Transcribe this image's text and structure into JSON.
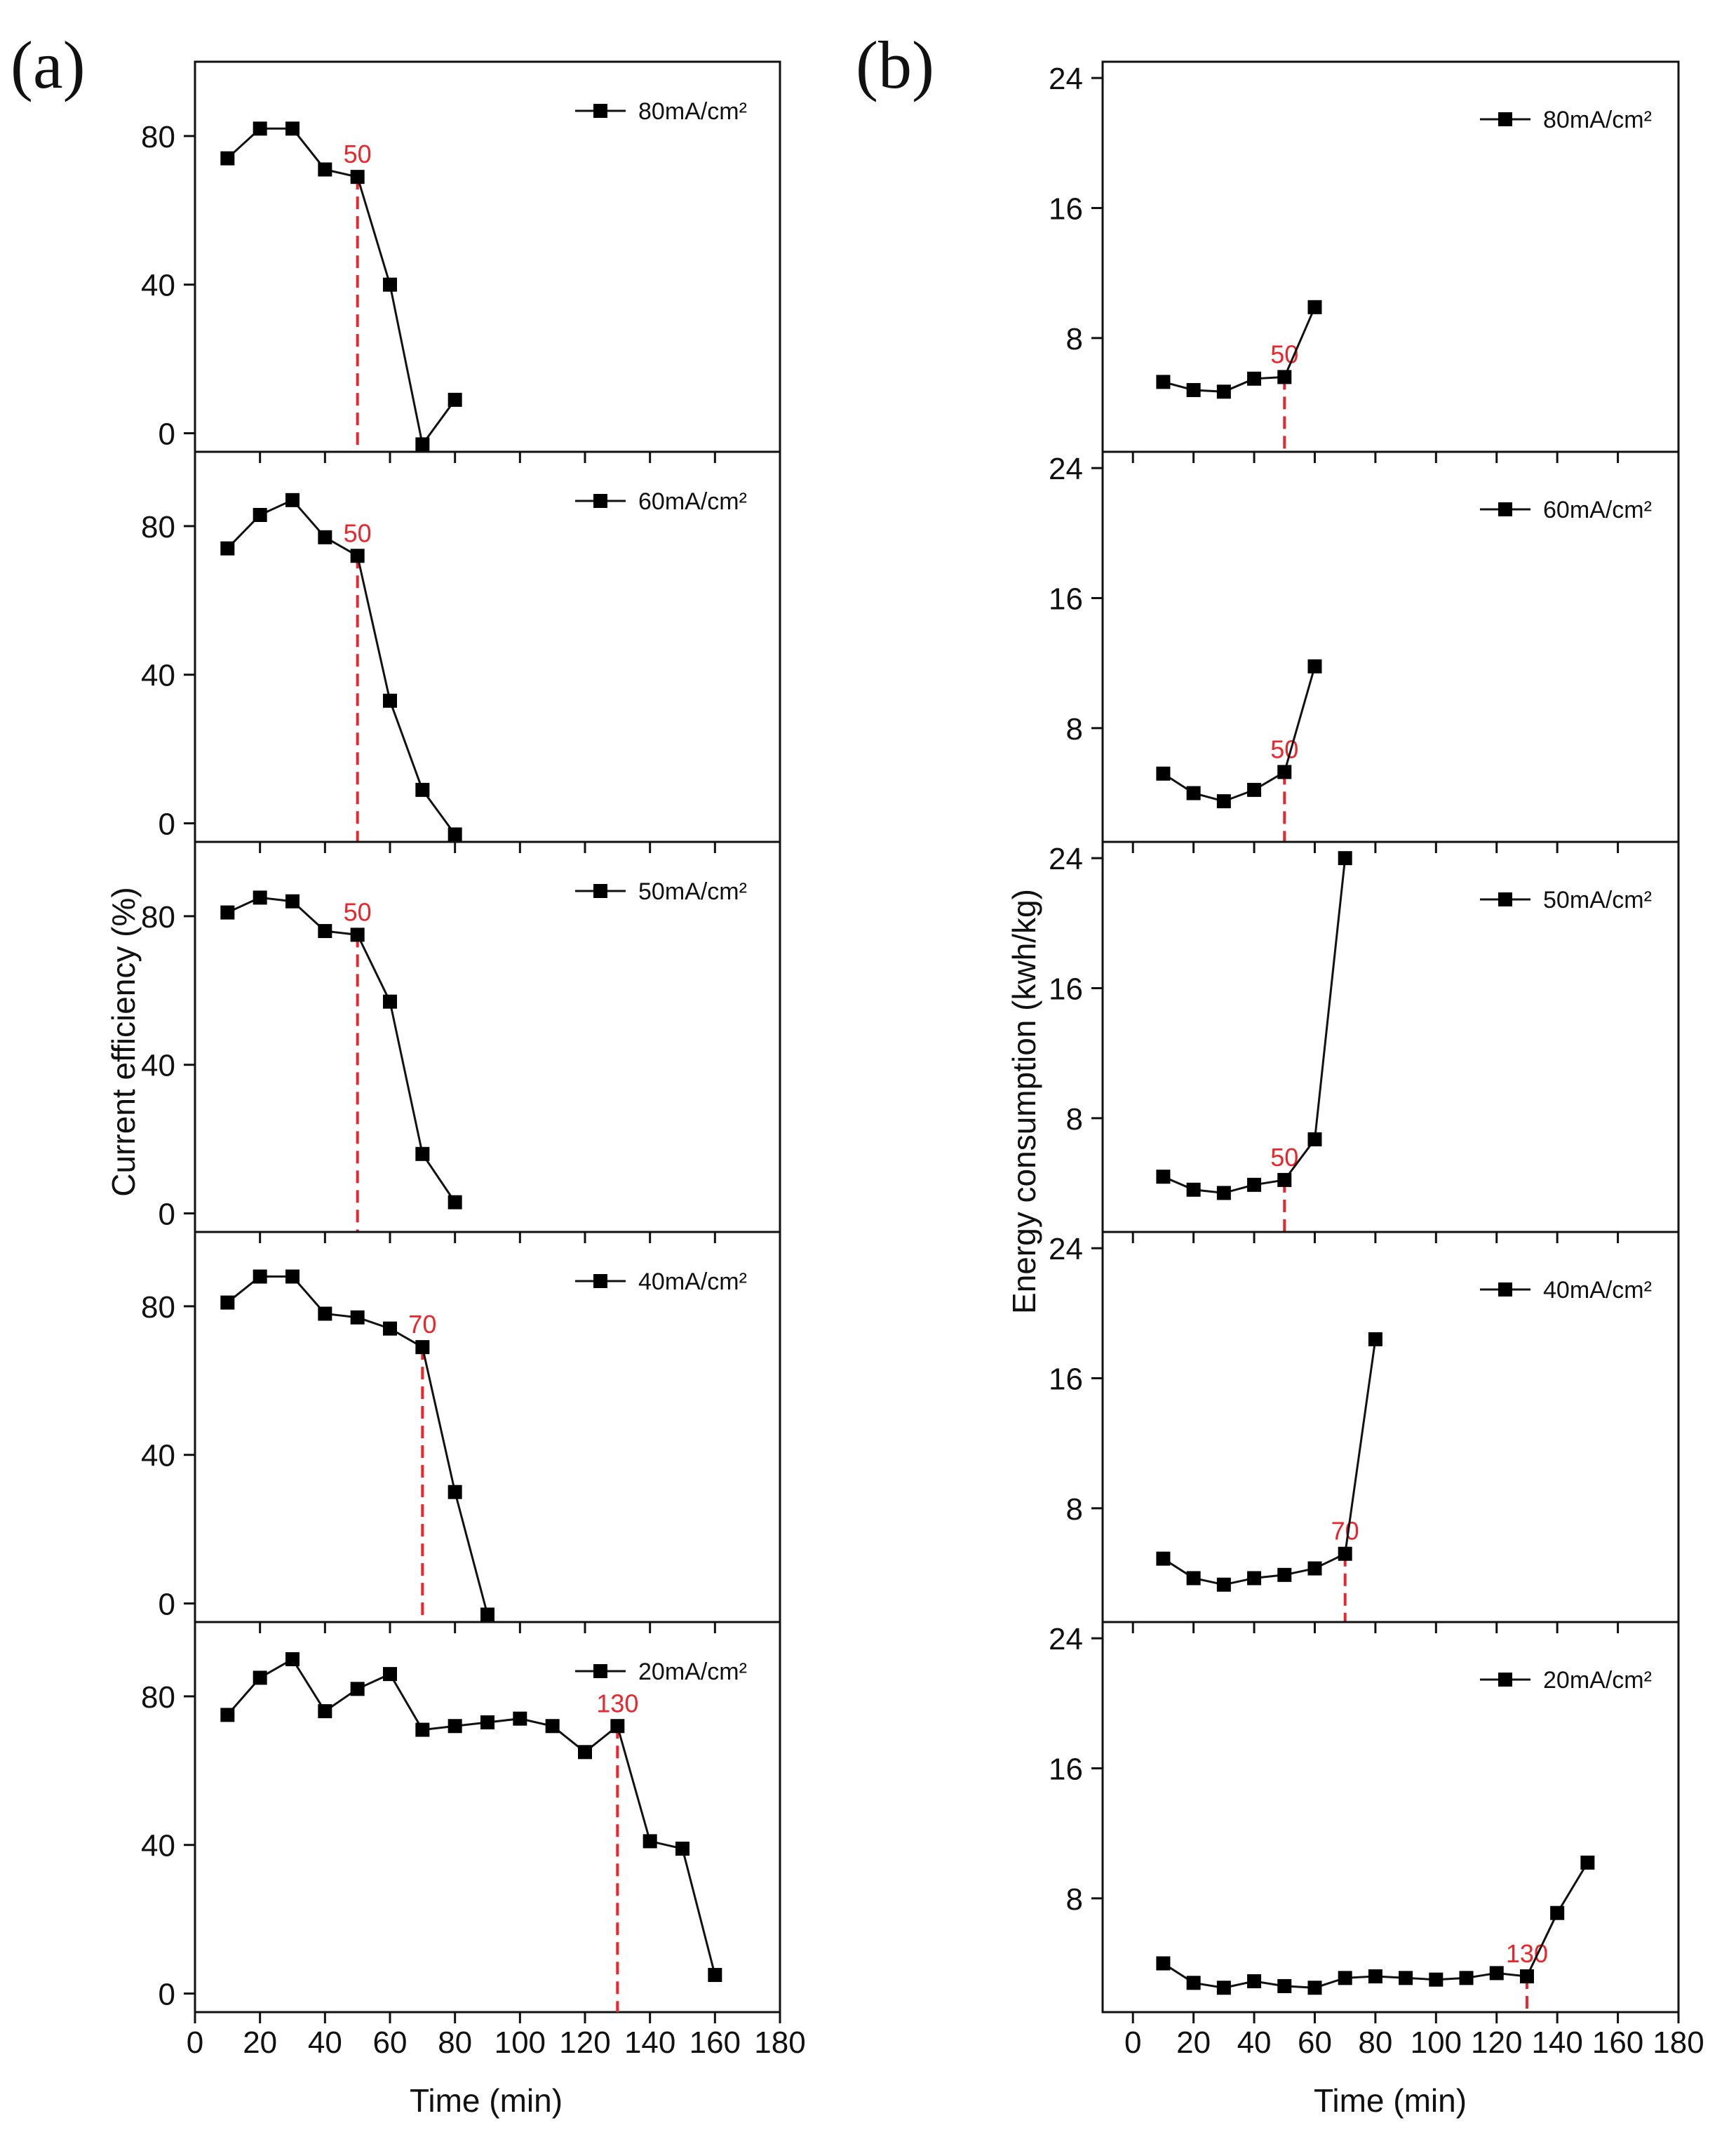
{
  "chart_data": [
    {
      "panel": "(a)",
      "type": "line",
      "xlabel": "Time (min)",
      "ylabel": "Current efficiency (%)",
      "xlim": [
        0,
        180
      ],
      "xticks": [
        0,
        20,
        40,
        60,
        80,
        100,
        120,
        140,
        160,
        180
      ],
      "ylim": [
        -5,
        100
      ],
      "yticks": [
        0,
        40,
        80
      ],
      "subplots": [
        {
          "legend": "80mA/cm²",
          "annotation": {
            "x": 50,
            "label": "50"
          },
          "x": [
            10,
            20,
            30,
            40,
            50,
            60,
            70,
            80
          ],
          "y": [
            74,
            82,
            82,
            71,
            69,
            40,
            -3,
            9
          ]
        },
        {
          "legend": "60mA/cm²",
          "annotation": {
            "x": 50,
            "label": "50"
          },
          "x": [
            10,
            20,
            30,
            40,
            50,
            60,
            70,
            80
          ],
          "y": [
            74,
            83,
            87,
            77,
            72,
            33,
            9,
            -3
          ]
        },
        {
          "legend": "50mA/cm²",
          "annotation": {
            "x": 50,
            "label": "50"
          },
          "x": [
            10,
            20,
            30,
            40,
            50,
            60,
            70,
            80
          ],
          "y": [
            81,
            85,
            84,
            76,
            75,
            57,
            16,
            3
          ]
        },
        {
          "legend": "40mA/cm²",
          "annotation": {
            "x": 70,
            "label": "70"
          },
          "x": [
            10,
            20,
            30,
            40,
            50,
            60,
            70,
            80,
            90
          ],
          "y": [
            81,
            88,
            88,
            78,
            77,
            74,
            69,
            30,
            -3
          ]
        },
        {
          "legend": "20mA/cm²",
          "annotation": {
            "x": 130,
            "label": "130"
          },
          "x": [
            10,
            20,
            30,
            40,
            50,
            60,
            70,
            80,
            90,
            100,
            110,
            120,
            130,
            140,
            150,
            160
          ],
          "y": [
            75,
            85,
            90,
            76,
            82,
            86,
            71,
            72,
            73,
            74,
            72,
            65,
            72,
            41,
            39,
            5
          ]
        }
      ]
    },
    {
      "panel": "(b)",
      "type": "line",
      "xlabel": "Time (min)",
      "ylabel": "Energy consumption (kwh/kg)",
      "xlim": [
        -10,
        180
      ],
      "xticks": [
        0,
        20,
        40,
        60,
        80,
        100,
        120,
        140,
        160,
        180
      ],
      "ylim": [
        1,
        25
      ],
      "yticks": [
        8,
        16,
        24
      ],
      "subplots": [
        {
          "legend": "80mA/cm²",
          "annotation": {
            "x": 50,
            "label": "50"
          },
          "x": [
            10,
            20,
            30,
            40,
            50,
            60
          ],
          "y": [
            5.3,
            4.8,
            4.7,
            5.5,
            5.6,
            9.9
          ]
        },
        {
          "legend": "60mA/cm²",
          "annotation": {
            "x": 50,
            "label": "50"
          },
          "x": [
            10,
            20,
            30,
            40,
            50,
            60
          ],
          "y": [
            5.2,
            4.0,
            3.5,
            4.2,
            5.3,
            11.8
          ]
        },
        {
          "legend": "50mA/cm²",
          "annotation": {
            "x": 50,
            "label": "50"
          },
          "x": [
            10,
            20,
            30,
            40,
            50,
            60,
            70
          ],
          "y": [
            4.4,
            3.6,
            3.4,
            3.9,
            4.2,
            6.7,
            24.0
          ]
        },
        {
          "legend": "40mA/cm²",
          "annotation": {
            "x": 70,
            "label": "70"
          },
          "x": [
            10,
            20,
            30,
            40,
            50,
            60,
            70,
            80
          ],
          "y": [
            4.9,
            3.7,
            3.3,
            3.7,
            3.9,
            4.3,
            5.2,
            18.4
          ]
        },
        {
          "legend": "20mA/cm²",
          "annotation": {
            "x": 130,
            "label": "130"
          },
          "x": [
            10,
            20,
            30,
            40,
            50,
            60,
            70,
            80,
            90,
            100,
            110,
            120,
            130,
            140,
            150
          ],
          "y": [
            4.0,
            2.8,
            2.5,
            2.9,
            2.6,
            2.5,
            3.1,
            3.2,
            3.1,
            3.0,
            3.1,
            3.4,
            3.2,
            7.1,
            10.2
          ]
        }
      ]
    }
  ]
}
